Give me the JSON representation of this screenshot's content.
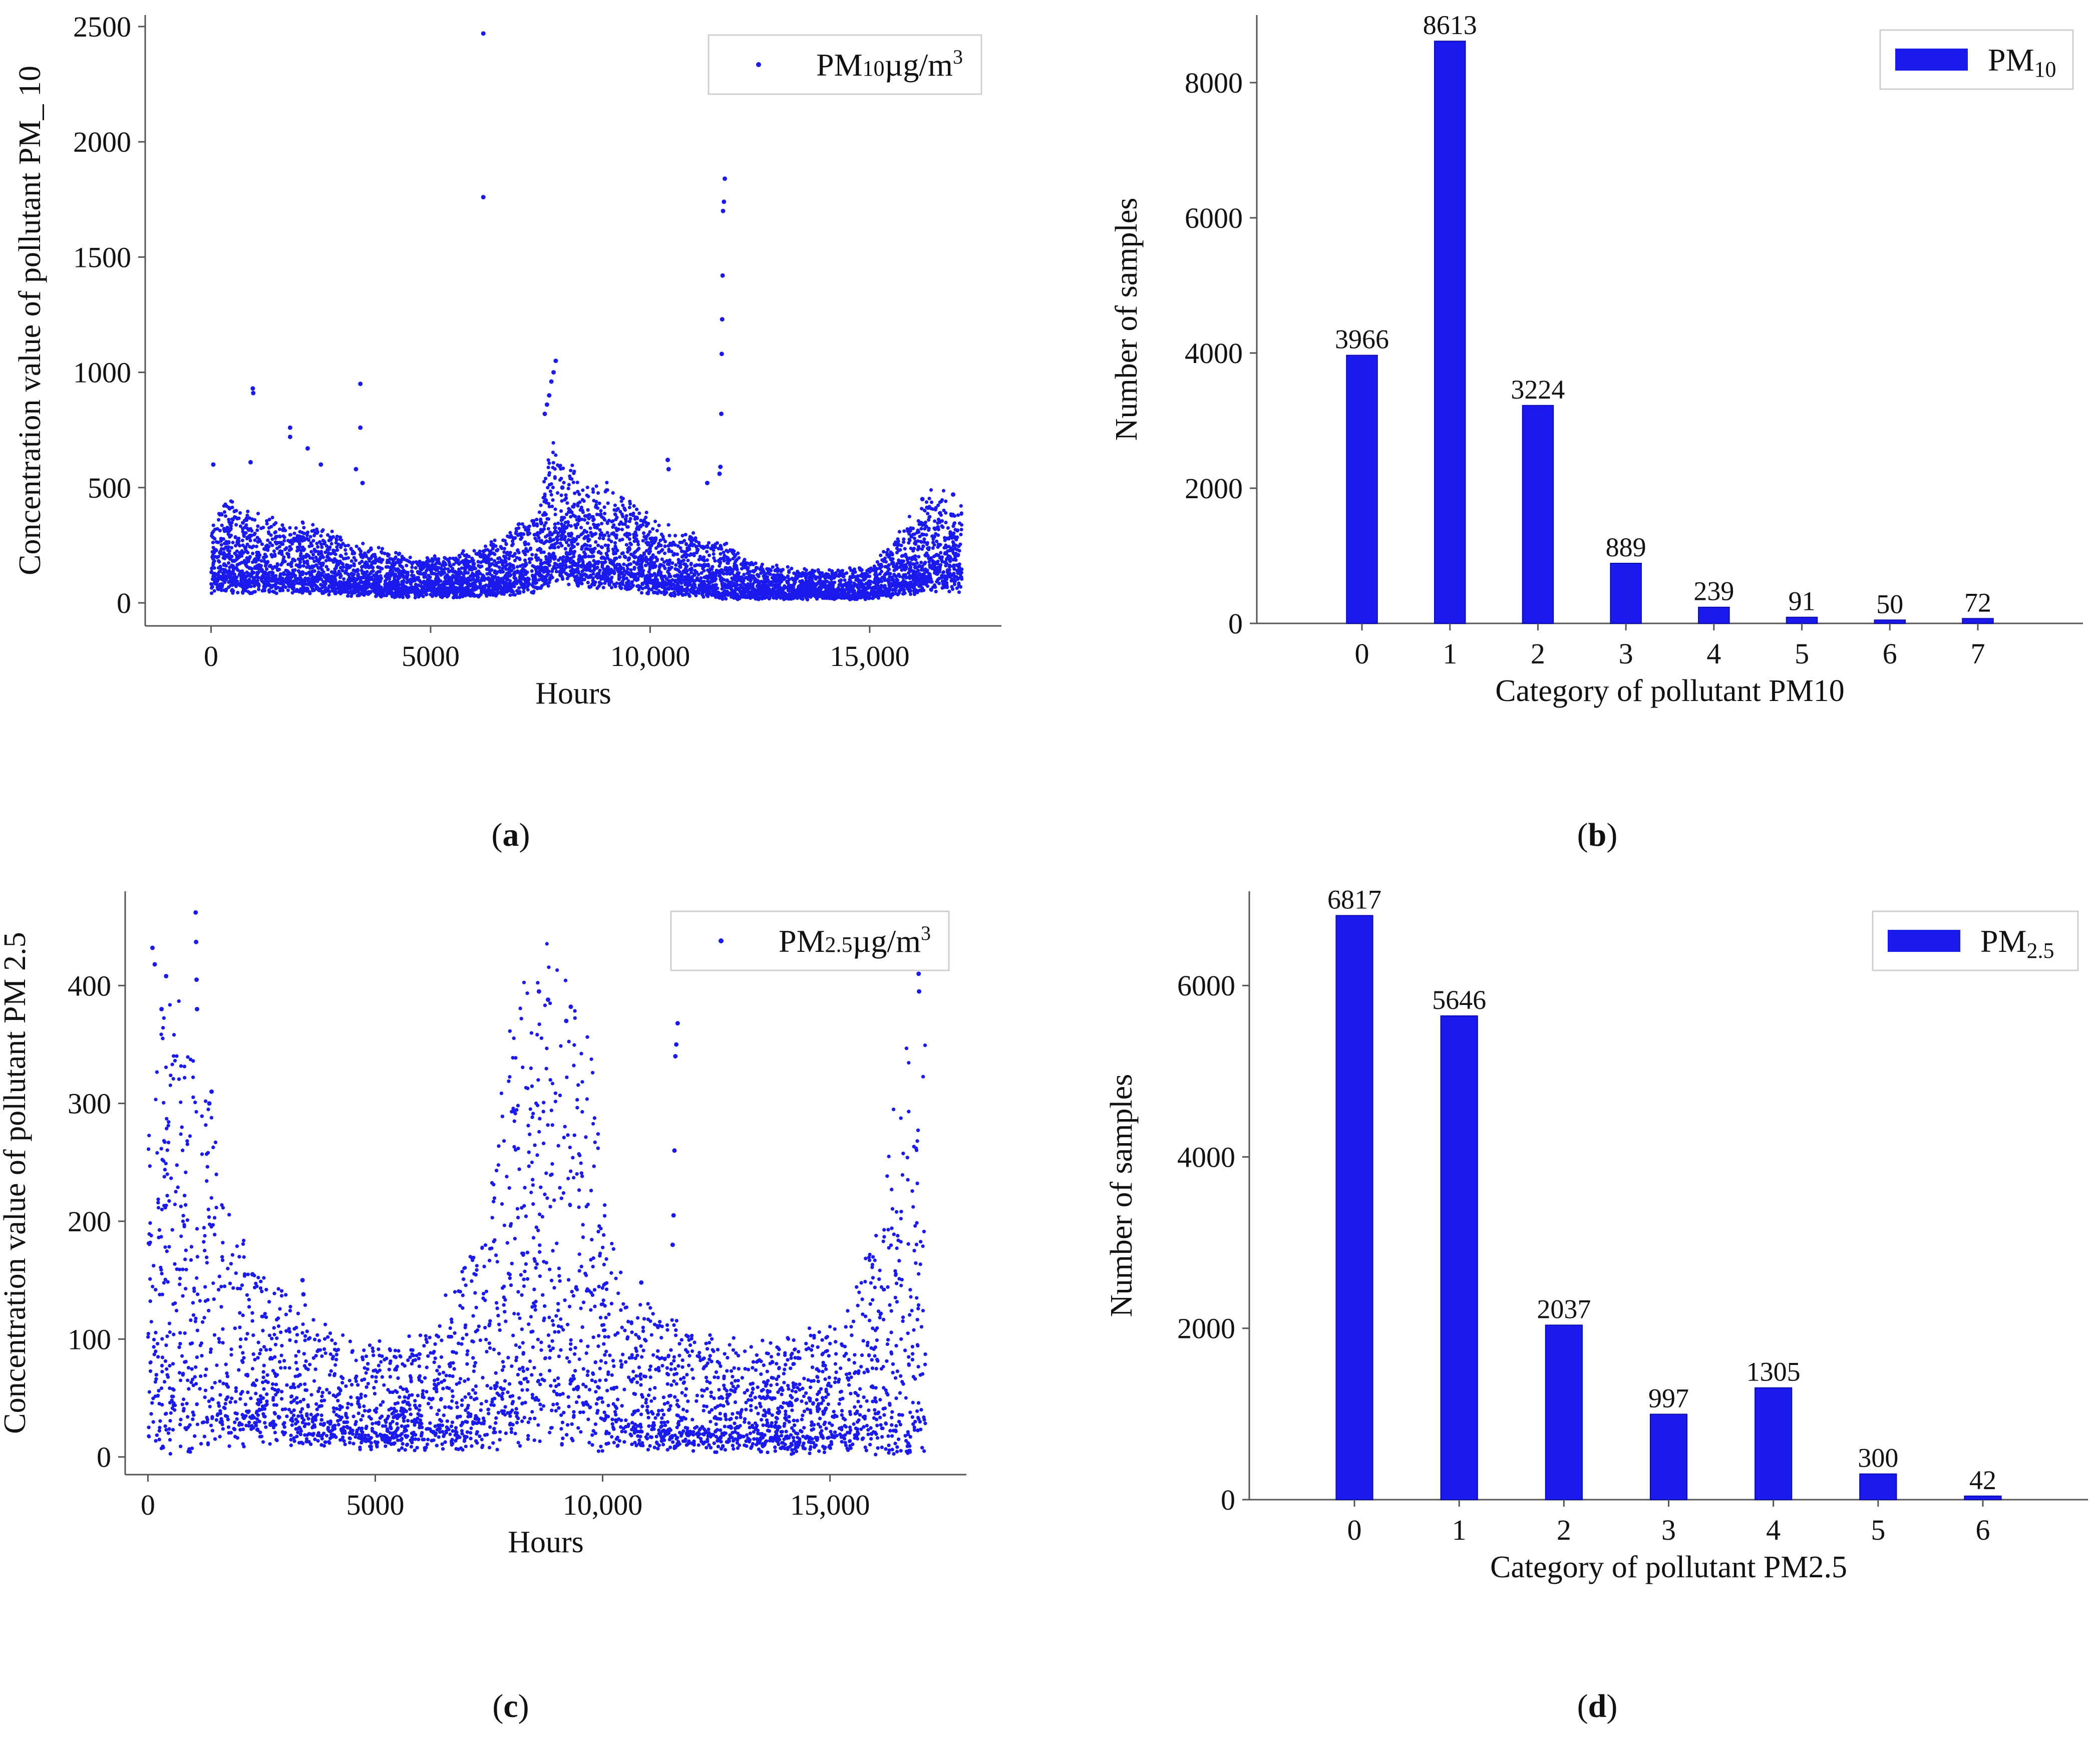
{
  "captions": {
    "a": "a",
    "b": "b",
    "c": "c",
    "d": "d"
  },
  "colors": {
    "series": "#1a1aee",
    "axis": "#555555",
    "text": "#111111"
  },
  "chart_data": [
    {
      "id": "a",
      "type": "scatter",
      "title": "",
      "xlabel": "Hours",
      "ylabel": "Concentration value of pollutant PM_ 10",
      "xlim": [
        -1500,
        18000
      ],
      "ylim": [
        -100,
        2550
      ],
      "x_ticks": [
        0,
        5000,
        10000,
        15000
      ],
      "x_tick_labels": [
        "0",
        "5000",
        "10,000",
        "15,000"
      ],
      "y_ticks": [
        0,
        500,
        1000,
        1500,
        2000,
        2500
      ],
      "y_tick_labels": [
        "0",
        "500",
        "1000",
        "1500",
        "2000",
        "2500"
      ],
      "legend": {
        "label_main": "PM",
        "label_sub": "10",
        "label_unit": "µg/m",
        "label_sup": "3",
        "position": "top-right"
      },
      "profile": {
        "x": [
          0,
          300,
          700,
          1200,
          1800,
          2500,
          3200,
          4000,
          4800,
          5600,
          6200,
          6800,
          7400,
          7800,
          8300,
          9000,
          9800,
          10500,
          11200,
          11700,
          12300,
          13000,
          13800,
          14500,
          15000,
          15500,
          16000,
          16500,
          17100
        ],
        "base": [
          120,
          170,
          140,
          130,
          130,
          120,
          95,
          80,
          70,
          75,
          90,
          110,
          150,
          260,
          210,
          190,
          150,
          110,
          95,
          85,
          60,
          55,
          50,
          50,
          55,
          90,
          140,
          170,
          150
        ],
        "spread": [
          150,
          230,
          210,
          180,
          170,
          160,
          130,
          110,
          90,
          100,
          120,
          150,
          200,
          330,
          260,
          240,
          200,
          160,
          140,
          140,
          90,
          80,
          70,
          70,
          80,
          130,
          200,
          240,
          200
        ]
      },
      "outliers": [
        {
          "x": 6200,
          "y": 2470
        },
        {
          "x": 6200,
          "y": 1760
        },
        {
          "x": 11700,
          "y": 1840
        },
        {
          "x": 11680,
          "y": 1740
        },
        {
          "x": 11660,
          "y": 1700
        },
        {
          "x": 11650,
          "y": 1420
        },
        {
          "x": 11640,
          "y": 1230
        },
        {
          "x": 11630,
          "y": 1080
        },
        {
          "x": 11620,
          "y": 820
        },
        {
          "x": 7850,
          "y": 1050
        },
        {
          "x": 7800,
          "y": 1000
        },
        {
          "x": 7750,
          "y": 960
        },
        {
          "x": 7700,
          "y": 900
        },
        {
          "x": 7650,
          "y": 860
        },
        {
          "x": 7600,
          "y": 820
        },
        {
          "x": 950,
          "y": 930
        },
        {
          "x": 960,
          "y": 910
        },
        {
          "x": 3400,
          "y": 950
        },
        {
          "x": 3400,
          "y": 760
        },
        {
          "x": 1800,
          "y": 760
        },
        {
          "x": 1800,
          "y": 720
        },
        {
          "x": 2200,
          "y": 670
        },
        {
          "x": 2500,
          "y": 600
        },
        {
          "x": 3300,
          "y": 580
        },
        {
          "x": 3450,
          "y": 520
        },
        {
          "x": 10400,
          "y": 620
        },
        {
          "x": 10420,
          "y": 580
        },
        {
          "x": 11300,
          "y": 520
        },
        {
          "x": 900,
          "y": 610
        },
        {
          "x": 50,
          "y": 600
        },
        {
          "x": 11600,
          "y": 590
        },
        {
          "x": 11580,
          "y": 560
        },
        {
          "x": 8000,
          "y": 500
        },
        {
          "x": 16900,
          "y": 470
        },
        {
          "x": 16200,
          "y": 450
        }
      ]
    },
    {
      "id": "b",
      "type": "bar",
      "title": "",
      "xlabel": "Category of pollutant PM10",
      "ylabel": "Number of samples",
      "categories": [
        "0",
        "1",
        "2",
        "3",
        "4",
        "5",
        "6",
        "7"
      ],
      "values": [
        3966,
        8613,
        3224,
        889,
        239,
        91,
        50,
        72
      ],
      "ylim": [
        0,
        9000
      ],
      "y_ticks": [
        0,
        2000,
        4000,
        6000,
        8000
      ],
      "legend": {
        "label_main": "PM",
        "label_sub": "10",
        "position": "top-right"
      }
    },
    {
      "id": "c",
      "type": "scatter",
      "title": "",
      "xlabel": "Hours",
      "ylabel": "Concentration value of pollutant PM 2.5",
      "xlim": [
        -500,
        18000
      ],
      "ylim": [
        -15,
        480
      ],
      "x_ticks": [
        0,
        5000,
        10000,
        15000
      ],
      "x_tick_labels": [
        "0",
        "5000",
        "10,000",
        "15,000"
      ],
      "y_ticks": [
        0,
        100,
        200,
        300,
        400
      ],
      "y_tick_labels": [
        "0",
        "100",
        "200",
        "300",
        "400"
      ],
      "legend": {
        "label_main": "PM",
        "label_sub": "2.5",
        "label_unit": "µg/m",
        "label_sup": "3",
        "position": "top-right"
      },
      "profile": {
        "x": [
          0,
          300,
          700,
          1100,
          1500,
          2000,
          2600,
          3200,
          4000,
          4800,
          5600,
          6200,
          6800,
          7400,
          7900,
          8400,
          8800,
          9300,
          9800,
          10100,
          10600,
          11200,
          11800,
          12500,
          13200,
          14000,
          14800,
          15500,
          16000,
          16500,
          17000
        ],
        "base": [
          80,
          110,
          100,
          90,
          70,
          55,
          50,
          45,
          35,
          30,
          30,
          35,
          45,
          60,
          100,
          120,
          130,
          110,
          95,
          60,
          45,
          40,
          35,
          30,
          30,
          28,
          30,
          40,
          55,
          75,
          90
        ],
        "spread": [
          160,
          230,
          220,
          200,
          150,
          100,
          80,
          70,
          55,
          50,
          50,
          60,
          80,
          120,
          200,
          230,
          250,
          220,
          200,
          110,
          80,
          70,
          60,
          55,
          55,
          55,
          60,
          80,
          120,
          180,
          230
        ]
      },
      "outliers": [
        {
          "x": 100,
          "y": 432
        },
        {
          "x": 150,
          "y": 418
        },
        {
          "x": 1050,
          "y": 462
        },
        {
          "x": 1060,
          "y": 437
        },
        {
          "x": 1070,
          "y": 405
        },
        {
          "x": 1080,
          "y": 380
        },
        {
          "x": 400,
          "y": 408
        },
        {
          "x": 300,
          "y": 380
        },
        {
          "x": 11650,
          "y": 368
        },
        {
          "x": 11620,
          "y": 350
        },
        {
          "x": 11600,
          "y": 340
        },
        {
          "x": 11580,
          "y": 260
        },
        {
          "x": 11560,
          "y": 205
        },
        {
          "x": 11540,
          "y": 180
        },
        {
          "x": 8600,
          "y": 395
        },
        {
          "x": 8800,
          "y": 388
        },
        {
          "x": 9300,
          "y": 382
        },
        {
          "x": 9200,
          "y": 370
        },
        {
          "x": 16950,
          "y": 410
        },
        {
          "x": 16960,
          "y": 395
        },
        {
          "x": 3400,
          "y": 150
        },
        {
          "x": 3420,
          "y": 138
        },
        {
          "x": 2300,
          "y": 155
        },
        {
          "x": 10850,
          "y": 148
        },
        {
          "x": 1400,
          "y": 310
        },
        {
          "x": 1350,
          "y": 300
        }
      ]
    },
    {
      "id": "d",
      "type": "bar",
      "title": "",
      "xlabel": "Category of pollutant PM2.5",
      "ylabel": "Number of samples",
      "categories": [
        "0",
        "1",
        "2",
        "3",
        "4",
        "5",
        "6"
      ],
      "values": [
        6817,
        5646,
        2037,
        997,
        1305,
        300,
        42
      ],
      "ylim": [
        0,
        7100
      ],
      "y_ticks": [
        0,
        2000,
        4000,
        6000
      ],
      "legend": {
        "label_main": "PM",
        "label_sub": "2.5",
        "position": "top-right"
      }
    }
  ]
}
